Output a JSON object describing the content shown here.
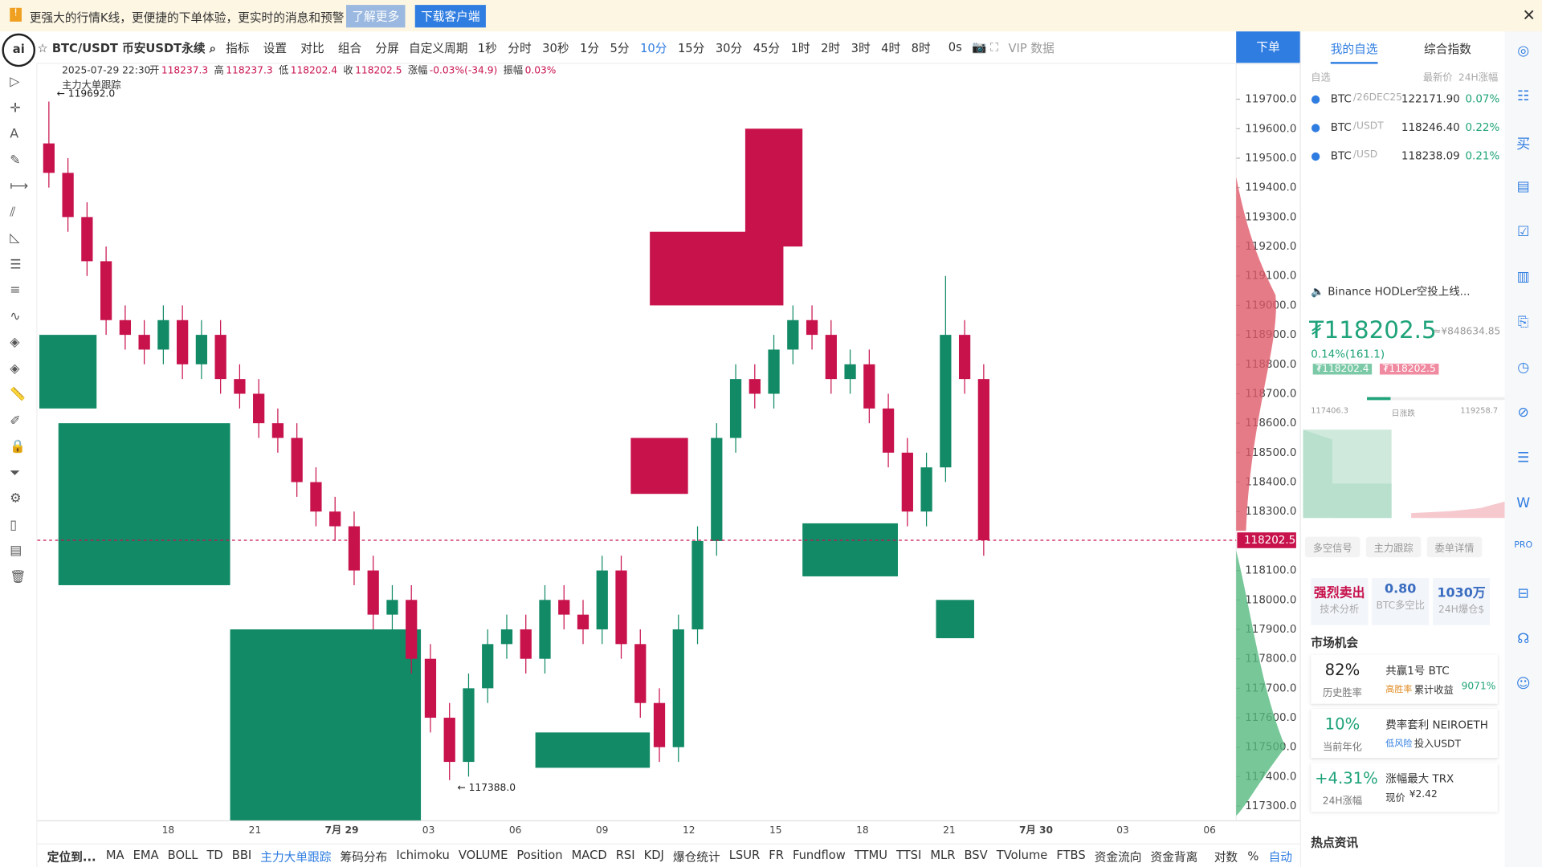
{
  "banner": {
    "text": "更强大的行情K线，更便捷的下单体验，更实时的消息和预警",
    "learn_more": "了解更多",
    "download": "下载客户端"
  },
  "toolbar": {
    "symbol": "BTC/USDT 币安USDT永续",
    "tools": [
      "指标",
      "设置",
      "对比",
      "组合",
      "分屏"
    ],
    "custom_period": "自定义周期",
    "intervals": [
      "1秒",
      "分时",
      "30秒",
      "1分",
      "5分",
      "10分",
      "15分",
      "30分",
      "45分",
      "1时",
      "2时",
      "3时",
      "4时",
      "8时"
    ],
    "active_interval": "10分",
    "countdown": "0s",
    "vip": "VIP 数据",
    "order": "下单"
  },
  "chart_data": {
    "type": "candlestick",
    "info": {
      "time": "2025-07-29 22:30",
      "fields": [
        {
          "label": "开",
          "value": "118237.3"
        },
        {
          "label": "高",
          "value": "118237.3"
        },
        {
          "label": "低",
          "value": "118202.4"
        },
        {
          "label": "收",
          "value": "118202.5"
        },
        {
          "label": "涨幅",
          "value": "-0.03%(-34.9)"
        },
        {
          "label": "振幅",
          "value": "0.03%"
        }
      ]
    },
    "indicator": "主力大单跟踪",
    "candles": [
      [
        119550,
        119692,
        119400,
        119450
      ],
      [
        119450,
        119500,
        119250,
        119300
      ],
      [
        119300,
        119350,
        119100,
        119150
      ],
      [
        119150,
        119200,
        118900,
        118950
      ],
      [
        118950,
        119000,
        118850,
        118900
      ],
      [
        118900,
        118950,
        118800,
        118850
      ],
      [
        118850,
        119000,
        118800,
        118950
      ],
      [
        118950,
        119000,
        118750,
        118800
      ],
      [
        118800,
        118950,
        118750,
        118900
      ],
      [
        118900,
        118950,
        118700,
        118750
      ],
      [
        118750,
        118800,
        118650,
        118700
      ],
      [
        118700,
        118750,
        118550,
        118600
      ],
      [
        118600,
        118650,
        118500,
        118550
      ],
      [
        118550,
        118600,
        118350,
        118400
      ],
      [
        118400,
        118450,
        118250,
        118300
      ],
      [
        118300,
        118350,
        118200,
        118250
      ],
      [
        118250,
        118300,
        118050,
        118100
      ],
      [
        118100,
        118150,
        117900,
        117950
      ],
      [
        117950,
        118050,
        117900,
        118000
      ],
      [
        118000,
        118050,
        117750,
        117800
      ],
      [
        117800,
        117850,
        117550,
        117600
      ],
      [
        117600,
        117650,
        117388,
        117450
      ],
      [
        117450,
        117750,
        117400,
        117700
      ],
      [
        117700,
        117900,
        117650,
        117850
      ],
      [
        117850,
        117950,
        117800,
        117900
      ],
      [
        117900,
        117950,
        117750,
        117800
      ],
      [
        117800,
        118050,
        117750,
        118000
      ],
      [
        118000,
        118050,
        117900,
        117950
      ],
      [
        117950,
        118000,
        117850,
        117900
      ],
      [
        117900,
        118150,
        117850,
        118100
      ],
      [
        118100,
        118150,
        117800,
        117850
      ],
      [
        117850,
        117900,
        117600,
        117650
      ],
      [
        117650,
        117700,
        117450,
        117500
      ],
      [
        117500,
        117950,
        117450,
        117900
      ],
      [
        117900,
        118250,
        117850,
        118200
      ],
      [
        118200,
        118600,
        118150,
        118550
      ],
      [
        118550,
        118800,
        118500,
        118750
      ],
      [
        118750,
        118800,
        118650,
        118700
      ],
      [
        118700,
        118900,
        118650,
        118850
      ],
      [
        118850,
        119000,
        118800,
        118950
      ],
      [
        118950,
        119000,
        118850,
        118900
      ],
      [
        118900,
        118950,
        118700,
        118750
      ],
      [
        118750,
        118850,
        118700,
        118800
      ],
      [
        118800,
        118850,
        118600,
        118650
      ],
      [
        118650,
        118700,
        118450,
        118500
      ],
      [
        118500,
        118550,
        118250,
        118300
      ],
      [
        118300,
        118500,
        118250,
        118450
      ],
      [
        118450,
        119100,
        118400,
        118900
      ],
      [
        118900,
        118950,
        118700,
        118750
      ],
      [
        118750,
        118800,
        118150,
        118202.5
      ]
    ],
    "blocks": [
      {
        "from": 0,
        "to": 2,
        "high": 118900,
        "low": 118650,
        "side": "buy"
      },
      {
        "from": 1,
        "to": 9,
        "high": 118600,
        "low": 118050,
        "side": "buy"
      },
      {
        "from": 10,
        "to": 19,
        "high": 117900,
        "low": 117250,
        "side": "buy"
      },
      {
        "from": 26,
        "to": 31,
        "high": 117550,
        "low": 117430,
        "side": "buy"
      },
      {
        "from": 31,
        "to": 33,
        "high": 118550,
        "low": 118360,
        "side": "sell"
      },
      {
        "from": 32,
        "to": 38,
        "high": 119250,
        "low": 119000,
        "side": "sell"
      },
      {
        "from": 37,
        "to": 39,
        "high": 119600,
        "low": 119200,
        "side": "sell"
      },
      {
        "from": 40,
        "to": 44,
        "high": 118260,
        "low": 118080,
        "side": "buy"
      },
      {
        "from": 47,
        "to": 48,
        "high": 118000,
        "low": 117870,
        "side": "buy"
      }
    ],
    "up_color": "#128a66",
    "down_color": "#c8124c",
    "ylim": [
      117250,
      119820
    ],
    "yticks": [
      {
        "value": 117300,
        "label": "117300.0"
      },
      {
        "value": 117400,
        "label": "117400.0"
      },
      {
        "value": 117500,
        "label": "117500.0"
      },
      {
        "value": 117600,
        "label": "117600.0"
      },
      {
        "value": 117700,
        "label": "117700.0"
      },
      {
        "value": 117800,
        "label": "117800.0"
      },
      {
        "value": 117900,
        "label": "117900.0"
      },
      {
        "value": 118000,
        "label": "118000.0"
      },
      {
        "value": 118100,
        "label": "118100.0"
      },
      {
        "value": 118300,
        "label": "118300.0"
      },
      {
        "value": 118400,
        "label": "118400.0"
      },
      {
        "value": 118500,
        "label": "118500.0"
      },
      {
        "value": 118600,
        "label": "118600.0"
      },
      {
        "value": 118700,
        "label": "118700.0"
      },
      {
        "value": 118800,
        "label": "118800.0"
      },
      {
        "value": 118900,
        "label": "118900.0"
      },
      {
        "value": 119000,
        "label": "119000.0"
      },
      {
        "value": 119100,
        "label": "119100.0"
      },
      {
        "value": 119200,
        "label": "119200.0"
      },
      {
        "value": 119300,
        "label": "119300.0"
      },
      {
        "value": 119400,
        "label": "119400.0"
      },
      {
        "value": 119500,
        "label": "119500.0"
      },
      {
        "value": 119600,
        "label": "119600.0"
      },
      {
        "value": 119700,
        "label": "119700.0"
      }
    ],
    "x_labels": [
      "18",
      "21",
      "7月 29",
      "03",
      "06",
      "09",
      "12",
      "15",
      "18",
      "21",
      "7月 30",
      "03",
      "06"
    ],
    "current_price": 118202.5,
    "current_price_label": "118202.5",
    "high_annotation": "← 119692.0",
    "low_annotation": "← 117388.0"
  },
  "panel": {
    "tabs": [
      "我的自选",
      "综合指数"
    ],
    "header": [
      "自选",
      "最新价",
      "24H涨幅"
    ],
    "watchlist": [
      {
        "base": "BTC",
        "quote": "/26DEC25",
        "price": "122171.90",
        "change": "0.07%"
      },
      {
        "base": "BTC",
        "quote": "/USDT",
        "price": "118246.40",
        "change": "0.22%"
      },
      {
        "base": "BTC",
        "quote": "/USD",
        "price": "118238.09",
        "change": "0.21%"
      }
    ],
    "news": "Binance HODLer空投上线...",
    "price": "₮118202.5",
    "price_cny": "≈¥848634.85",
    "change": "0.14%(161.1)",
    "bid": "₮118202.4",
    "ask": "₮118202.5",
    "range_low": "117406.3",
    "range_title": "日涨跌",
    "range_high": "119258.7",
    "buttons": [
      "多空信号",
      "主力跟踪",
      "委单详情"
    ],
    "stats": [
      {
        "value": "强烈卖出",
        "label": "技术分析"
      },
      {
        "value": "0.80",
        "label": "BTC多空比"
      },
      {
        "value": "1030万",
        "label": "24H爆仓$"
      }
    ],
    "opportunity_title": "市场机会",
    "cards": [
      {
        "big": "82%",
        "big_label": "历史胜率",
        "title": "共赢1号 BTC",
        "tag": "高胜率",
        "sub": "累计收益",
        "sub_value": "9071%"
      },
      {
        "big": "10%",
        "big_label": "当前年化",
        "title": "费率套利 NEIROETH",
        "tag": "低风险",
        "sub": "投入USDT",
        "sub_value": ""
      },
      {
        "big": "+4.31%",
        "big_label": "24H涨幅",
        "title": "涨幅最大 TRX",
        "tag": "",
        "sub": "现价",
        "sub_value": "¥2.42"
      }
    ],
    "hot_title": "热点资讯"
  },
  "bottom_bar": {
    "locate": "定位到...",
    "indicators": [
      "MA",
      "EMA",
      "BOLL",
      "TD",
      "BBI",
      "主力大单跟踪",
      "筹码分布",
      "Ichimoku",
      "VOLUME",
      "Position",
      "MACD",
      "RSI",
      "KDJ",
      "爆仓统计",
      "LSUR",
      "FR",
      "Fundflow",
      "TTMU",
      "TTSI",
      "MLR",
      "BSV",
      "TVolume",
      "FTBS",
      "资金流向",
      "资金背离"
    ],
    "active": "主力大单跟踪",
    "log": "对数",
    "percent": "%",
    "auto": "自动"
  }
}
